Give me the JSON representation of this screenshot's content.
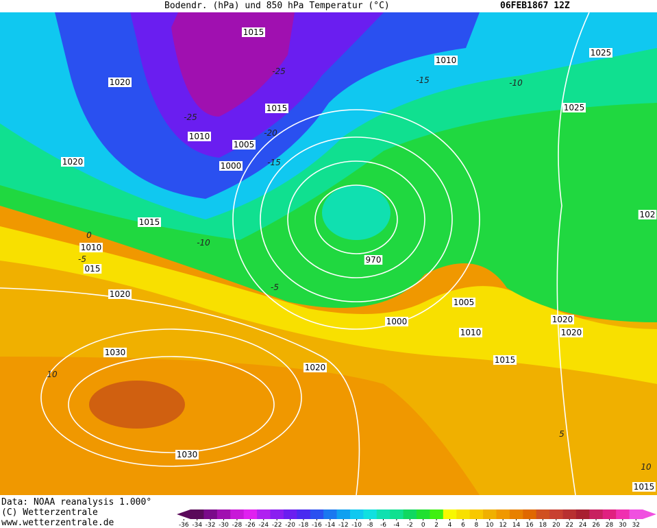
{
  "header": {
    "title": "Bodendr. (hPa) und 850 hPa Temperatur (°C)",
    "date": "06FEB1867 12Z"
  },
  "isobar_labels": [
    "1015",
    "1010",
    "1025",
    "1020",
    "1015",
    "1025",
    "1010",
    "1005",
    "1000",
    "1020",
    "1015",
    "102",
    "1010",
    "015",
    "1020",
    "970",
    "1005",
    "1000",
    "1010",
    "1020",
    "1020",
    "1015",
    "1030",
    "1020",
    "1030",
    "1015"
  ],
  "temperature_labels": [
    "-25",
    "-25",
    "-20",
    "-15",
    "-15",
    "-10",
    "-10",
    "-5",
    "-5",
    "0",
    "10",
    "5",
    "10"
  ],
  "footer": {
    "source": "Data: NOAA reanalysis 1.000°",
    "copyright": "(C) Wetterzentrale",
    "url": "www.wetterzentrale.de"
  },
  "colorbar": {
    "ticks": [
      -36,
      -34,
      -32,
      -30,
      -28,
      -26,
      -24,
      -22,
      -20,
      -18,
      -16,
      -14,
      -12,
      -10,
      -8,
      -6,
      -4,
      -2,
      0,
      2,
      4,
      6,
      8,
      10,
      12,
      14,
      16,
      18,
      20,
      22,
      24,
      26,
      28,
      30,
      32
    ],
    "colors": [
      "#5a0a5a",
      "#7a0a8a",
      "#a010b0",
      "#c818d8",
      "#e020f0",
      "#b020f0",
      "#8a1ef0",
      "#6a1ef0",
      "#4a2af0",
      "#2a50f0",
      "#1a78f0",
      "#10a0f0",
      "#10c8f0",
      "#10e0e0",
      "#10e0b0",
      "#10e090",
      "#10d860",
      "#20e030",
      "#40f010",
      "#f8f800",
      "#f8e000",
      "#f8c800",
      "#f0b000",
      "#f09800",
      "#e88000",
      "#e06800",
      "#d05020",
      "#c84030",
      "#b83030",
      "#a82030",
      "#c82060",
      "#e02080",
      "#f030b0",
      "#f050e0"
    ]
  }
}
